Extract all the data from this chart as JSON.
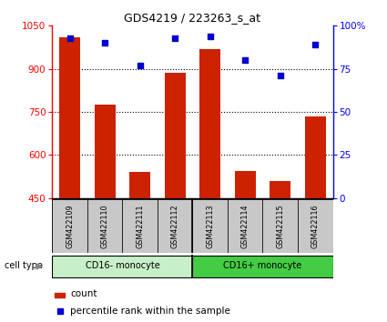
{
  "title": "GDS4219 / 223263_s_at",
  "samples": [
    "GSM422109",
    "GSM422110",
    "GSM422111",
    "GSM422112",
    "GSM422113",
    "GSM422114",
    "GSM422115",
    "GSM422116"
  ],
  "counts": [
    1010,
    775,
    540,
    885,
    970,
    545,
    510,
    735
  ],
  "percentile_ranks": [
    93,
    90,
    77,
    93,
    94,
    80,
    71,
    89
  ],
  "ylim_left": [
    450,
    1050
  ],
  "ylim_right": [
    0,
    100
  ],
  "yticks_left": [
    450,
    600,
    750,
    900,
    1050
  ],
  "yticks_right": [
    0,
    25,
    50,
    75,
    100
  ],
  "ytick_right_labels": [
    "0",
    "25",
    "50",
    "75",
    "100%"
  ],
  "grid_yticks": [
    600,
    750,
    900
  ],
  "groups": [
    {
      "label": "CD16- monocyte",
      "start": 0,
      "end": 4,
      "color": "#c8f0c8"
    },
    {
      "label": "CD16+ monocyte",
      "start": 4,
      "end": 8,
      "color": "#44cc44"
    }
  ],
  "bar_color": "#cc2200",
  "dot_color": "#0000cc",
  "tick_area_color": "#c8c8c8",
  "legend_count_label": "count",
  "legend_pct_label": "percentile rank within the sample",
  "cell_type_label": "cell type",
  "separator_x": 3.5,
  "n_samples": 8,
  "xlim": [
    -0.5,
    7.5
  ]
}
